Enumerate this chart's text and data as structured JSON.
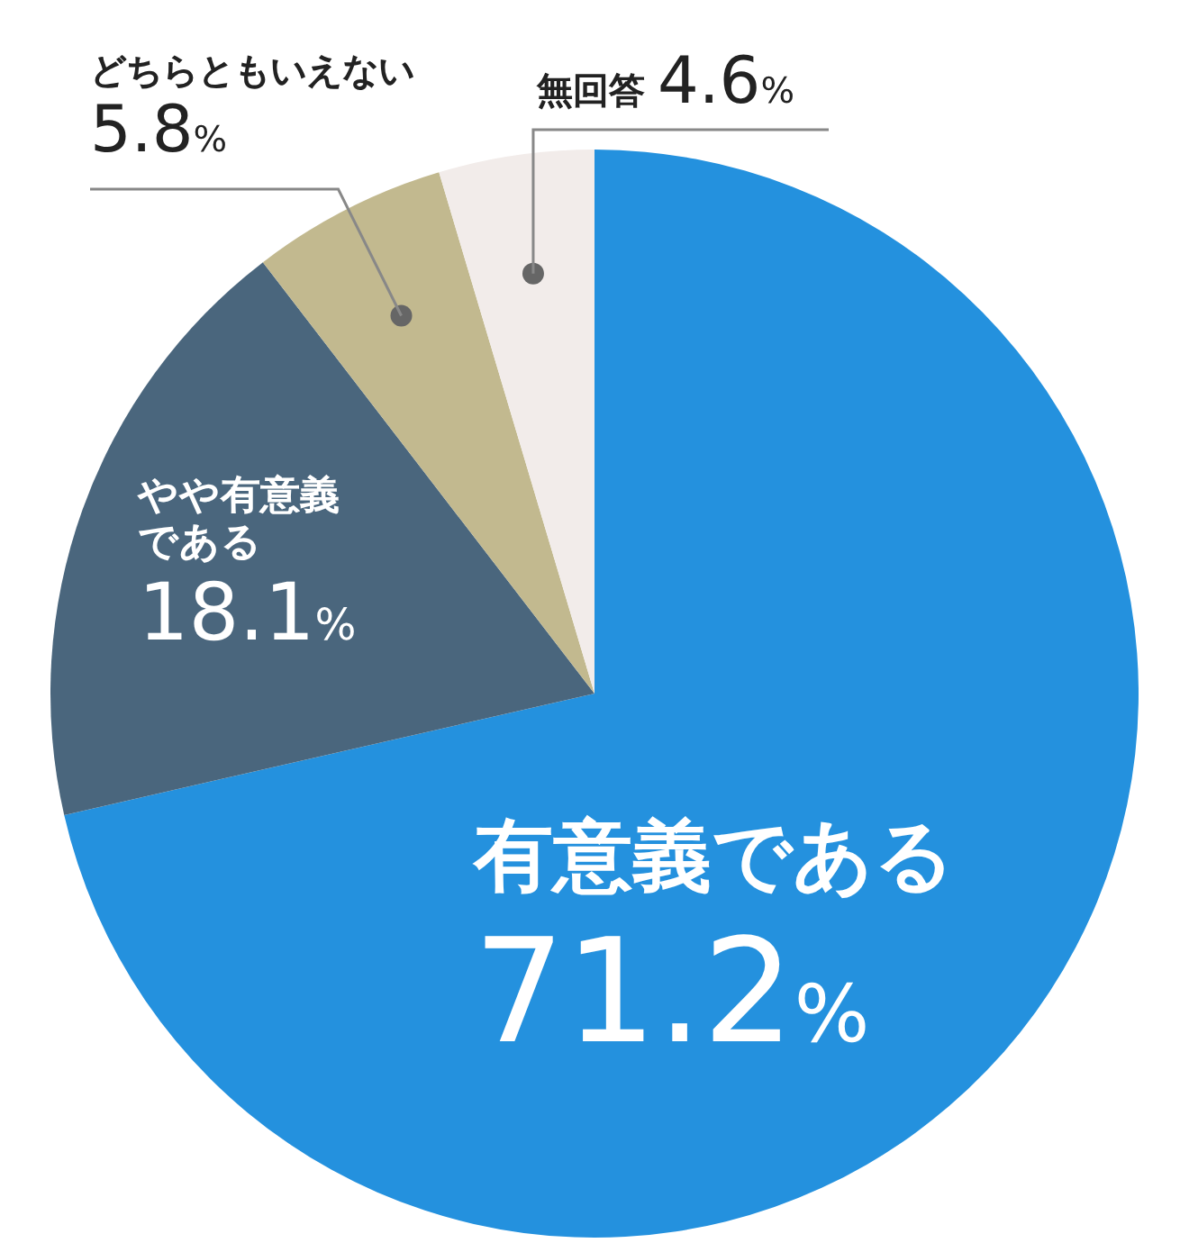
{
  "chart_data": {
    "type": "pie",
    "categories": [
      "有意義である",
      "やや有意義である",
      "どちらともいえない",
      "無回答"
    ],
    "values": [
      71.2,
      18.1,
      5.8,
      4.6
    ],
    "colors": [
      "#2491de",
      "#4a667d",
      "#c2b98f",
      "#f2ecea"
    ],
    "value_labels": [
      "71.2%",
      "18.1%",
      "5.8%",
      "4.6%"
    ]
  }
}
